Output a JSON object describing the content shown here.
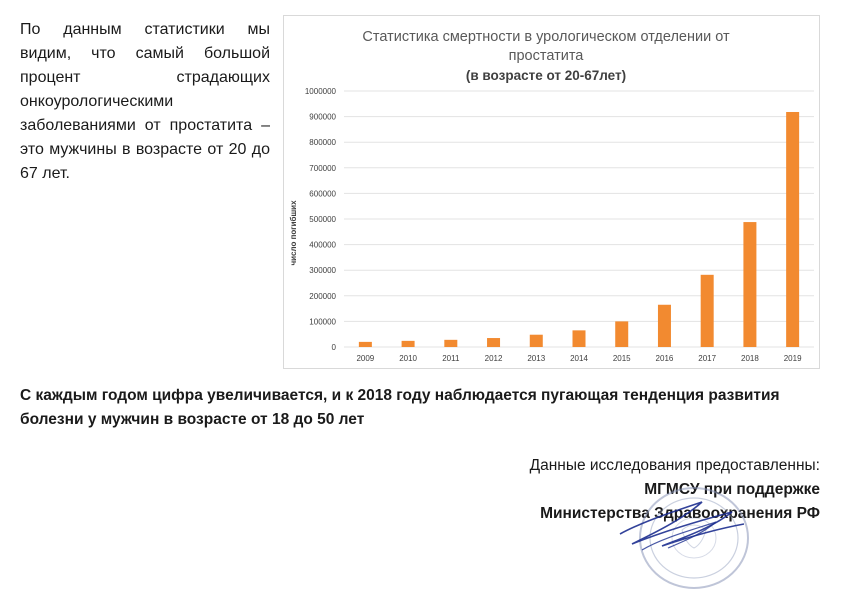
{
  "intro_text": "По данным статистики мы видим, что самый большой процент страдающих онкоурологическими заболеваниями от простатита – это мужчины в возрасте от 20 до 67 лет.",
  "summary_text": "С каждым годом цифра увеличивается, и к 2018 году наблюдается пугающая тенденция развития болезни у мужчин в возрасте от 18 до 50 лет",
  "credits": {
    "line1": "Данные исследования предоставленны:",
    "line2": "МГМСУ при поддержке",
    "line3": "Министерства Здравоохранения РФ"
  },
  "colors": {
    "bar": "#f28a30",
    "title": "#595959",
    "axis": "#404040",
    "grid": "#e3e3e3"
  },
  "chart_data": {
    "type": "bar",
    "title": "Статистика смертности в урологическом отделении от простатита",
    "subtitle": "(в возрасте от 20-67лет)",
    "xlabel": "",
    "ylabel": "число погибших",
    "categories": [
      "2009",
      "2010",
      "2011",
      "2012",
      "2013",
      "2014",
      "2015",
      "2016",
      "2017",
      "2018",
      "2019"
    ],
    "values": [
      20000,
      24000,
      28000,
      35000,
      48000,
      65000,
      100000,
      165000,
      282000,
      488000,
      918000
    ],
    "ylim": [
      0,
      1000000
    ],
    "yticks": [
      0,
      100000,
      200000,
      300000,
      400000,
      500000,
      600000,
      700000,
      800000,
      900000,
      1000000
    ],
    "grid": true,
    "legend": "none"
  }
}
